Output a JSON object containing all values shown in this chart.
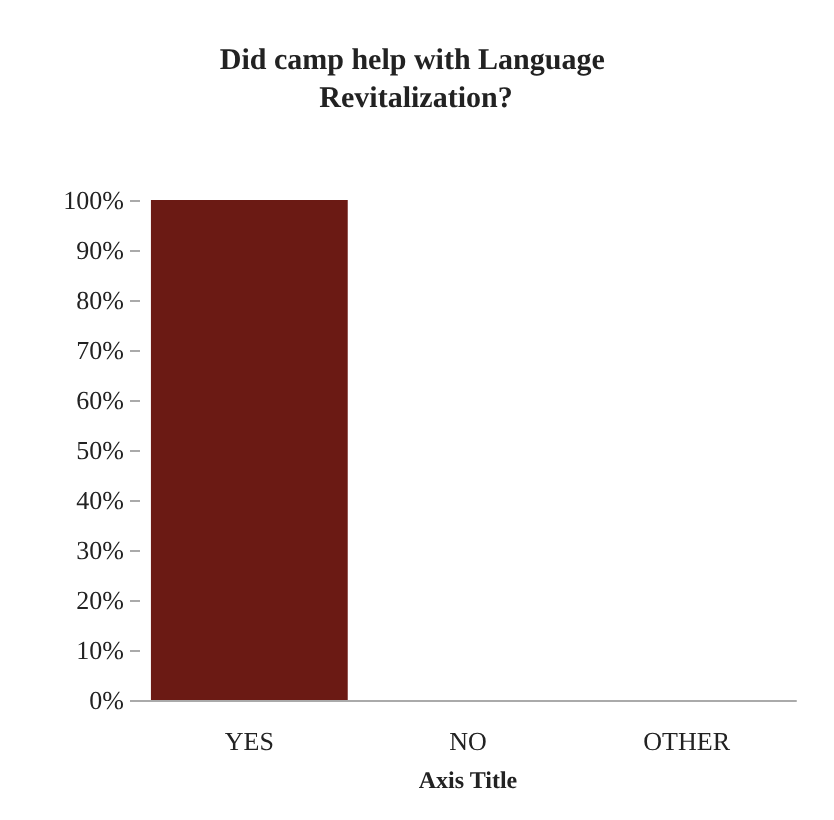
{
  "chart_data": {
    "type": "bar",
    "title": "Did camp help with Language Revitalization?",
    "xlabel": "Axis Title",
    "categories": [
      "YES",
      "NO",
      "OTHER"
    ],
    "values": [
      100,
      0,
      0
    ],
    "color": "#6b1a14",
    "ylim": [
      0,
      100
    ],
    "yticks": [
      {
        "value": 0,
        "label": "0%"
      },
      {
        "value": 10,
        "label": "10%"
      },
      {
        "value": 20,
        "label": "20%"
      },
      {
        "value": 30,
        "label": "30%"
      },
      {
        "value": 40,
        "label": "40%"
      },
      {
        "value": 50,
        "label": "50%"
      },
      {
        "value": 60,
        "label": "60%"
      },
      {
        "value": 70,
        "label": "70%"
      },
      {
        "value": 80,
        "label": "80%"
      },
      {
        "value": 90,
        "label": "90%"
      },
      {
        "value": 100,
        "label": "100%"
      }
    ]
  }
}
